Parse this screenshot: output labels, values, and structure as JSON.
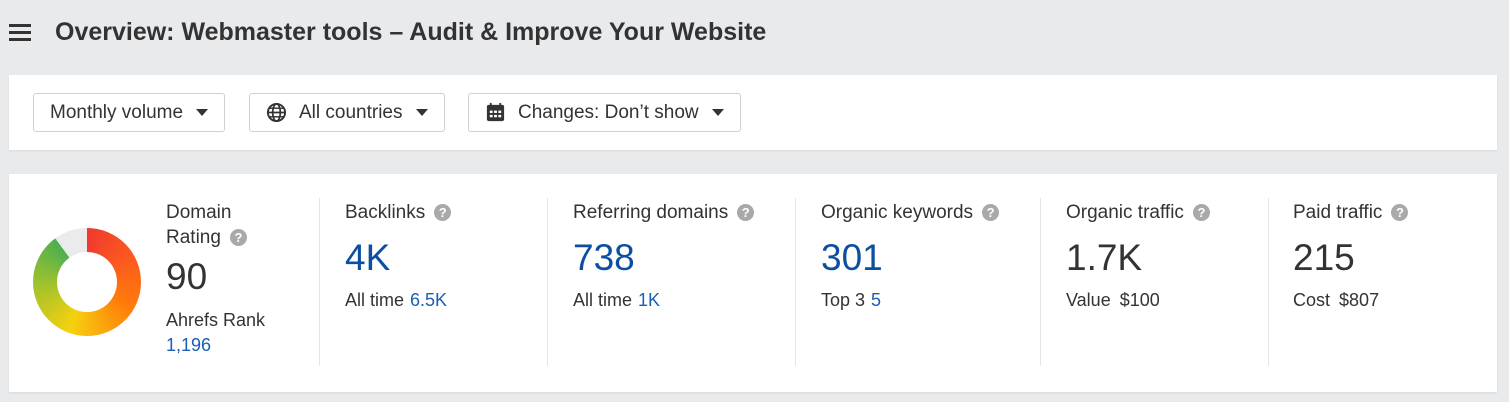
{
  "header": {
    "title": "Overview: Webmaster tools – Audit & Improve Your Website"
  },
  "filters": [
    {
      "label": "Monthly volume",
      "icon": ""
    },
    {
      "label": "All countries",
      "icon": "globe-icon"
    },
    {
      "label": "Changes: Don’t show",
      "icon": "calendar-icon"
    }
  ],
  "colors": {
    "link": "#1a5fb4",
    "value_blue": "#0b4ea2",
    "background": "#e9eaec"
  },
  "domain_rating": {
    "label_line1": "Domain",
    "label_line2": "Rating",
    "value": "90",
    "rank_label": "Ahrefs Rank",
    "rank_value": "1,196",
    "gauge_percent": 90
  },
  "metrics": [
    {
      "label": "Backlinks",
      "value": "4K",
      "sub_label": "All time",
      "sub_value": "6.5K"
    },
    {
      "label": "Referring domains",
      "value": "738",
      "sub_label": "All time",
      "sub_value": "1K"
    },
    {
      "label": "Organic keywords",
      "value": "301",
      "sub_label": "Top 3",
      "sub_value": "5"
    },
    {
      "label": "Organic traffic",
      "value": "1.7K",
      "sub_label": "Value",
      "sub_value": "$100"
    },
    {
      "label": "Paid traffic",
      "value": "215",
      "sub_label": "Cost",
      "sub_value": "$807"
    }
  ]
}
